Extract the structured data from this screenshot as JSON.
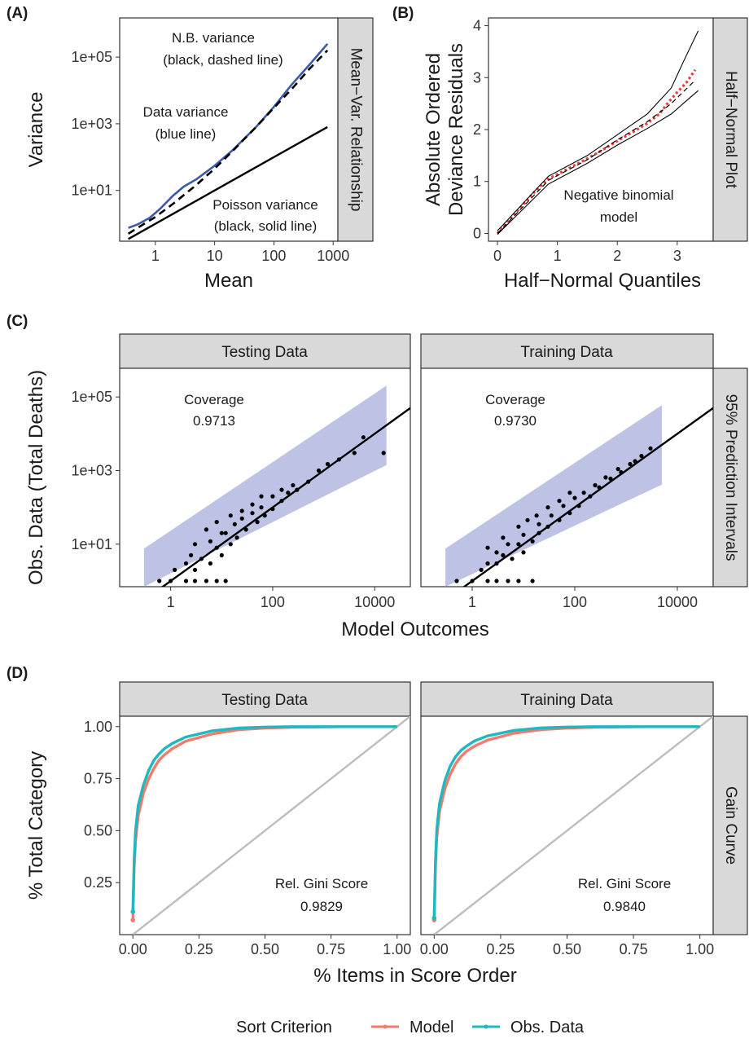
{
  "chart_data": [
    {
      "panel": "(A)",
      "type": "line",
      "xlabel": "Mean",
      "ylabel": "Variance",
      "strip": "Mean−Var. Relationship",
      "x_scale": "log10",
      "y_scale": "log10",
      "xlim": [
        0.25,
        1200
      ],
      "ylim": [
        0.3,
        1500000
      ],
      "x_ticks": [
        {
          "value": 1,
          "label": "1"
        },
        {
          "value": 10,
          "label": "10"
        },
        {
          "value": 100,
          "label": "100"
        },
        {
          "value": 1000,
          "label": "1000"
        }
      ],
      "y_ticks": [
        {
          "value": 10,
          "label": "1e+01"
        },
        {
          "value": 1000,
          "label": "1e+03"
        },
        {
          "value": 100000,
          "label": "1e+05"
        }
      ],
      "annotations": [
        {
          "lines": [
            "N.B. variance",
            "(black, dashed line)"
          ]
        },
        {
          "lines": [
            "Data variance",
            "(blue line)"
          ]
        },
        {
          "lines": [
            "Poisson variance",
            "(black, solid line)"
          ]
        }
      ],
      "series": [
        {
          "style": "data",
          "color": "#3b5ba7",
          "x": [
            0.35,
            0.5,
            0.8,
            1.2,
            2,
            3,
            5,
            10,
            20,
            50,
            100,
            200,
            400,
            800
          ],
          "y": [
            0.75,
            0.95,
            1.5,
            2.8,
            7,
            13,
            22,
            55,
            160,
            800,
            3200,
            15000,
            60000,
            250000
          ]
        },
        {
          "style": "nb",
          "color": "#000000",
          "x": [
            0.35,
            0.5,
            1,
            2,
            5,
            10,
            20,
            50,
            100,
            200,
            400,
            800
          ],
          "y": [
            0.5,
            0.75,
            1.6,
            4,
            15,
            45,
            150,
            800,
            3000,
            11000,
            45000,
            160000
          ]
        },
        {
          "style": "poisson",
          "color": "#000000",
          "x": [
            0.35,
            800
          ],
          "y": [
            0.35,
            800
          ]
        }
      ]
    },
    {
      "panel": "(B)",
      "type": "line",
      "xlabel": "Half−Normal Quantiles",
      "ylabel": [
        "Absolute Ordered",
        "Deviance Residuals"
      ],
      "strip": "Half−Normal Plot",
      "xlim": [
        -0.15,
        3.6
      ],
      "ylim": [
        -0.15,
        4.15
      ],
      "x_ticks": [
        0,
        1,
        2,
        3
      ],
      "y_ticks": [
        0,
        1,
        2,
        3,
        4
      ],
      "annotations": [
        {
          "lines": [
            "Negative binomial",
            "model"
          ]
        }
      ],
      "points_color": "#e8413a",
      "series": [
        {
          "style": "observed",
          "x": [
            0,
            0.2,
            0.4,
            0.6,
            0.85,
            1.1,
            1.4,
            1.7,
            2,
            2.3,
            2.5,
            2.7,
            2.85,
            3,
            3.15,
            3.3
          ],
          "y": [
            0,
            0.26,
            0.52,
            0.78,
            1.05,
            1.2,
            1.38,
            1.57,
            1.78,
            1.98,
            2.12,
            2.3,
            2.52,
            2.72,
            2.9,
            3.15
          ]
        },
        {
          "style": "envelope-mid",
          "x": [
            0,
            0.85,
            1.5,
            2,
            2.5,
            2.9,
            3.3
          ],
          "y": [
            0,
            1.02,
            1.42,
            1.8,
            2.15,
            2.5,
            2.95
          ]
        },
        {
          "style": "envelope-upper",
          "x": [
            0,
            0.85,
            1.5,
            2,
            2.5,
            2.9,
            3.1,
            3.35
          ],
          "y": [
            0.05,
            1.1,
            1.5,
            1.9,
            2.3,
            2.8,
            3.3,
            3.9
          ]
        },
        {
          "style": "envelope-lower",
          "x": [
            0,
            0.85,
            1.5,
            2,
            2.5,
            2.9,
            3.1,
            3.35
          ],
          "y": [
            -0.02,
            0.95,
            1.35,
            1.7,
            2.02,
            2.3,
            2.5,
            2.75
          ]
        }
      ]
    },
    {
      "panel": "(C)",
      "type": "scatter",
      "xlabel": "Model Outcomes",
      "ylabel": "Obs. Data (Total Deaths)",
      "strip": "95% Prediction Intervals",
      "x_scale": "log10",
      "y_scale": "log10",
      "xlim": [
        0.1,
        50000
      ],
      "ylim": [
        0.7,
        600000
      ],
      "x_ticks": [
        {
          "value": 1,
          "label": "1"
        },
        {
          "value": 100,
          "label": "100"
        },
        {
          "value": 10000,
          "label": "10000"
        }
      ],
      "y_ticks": [
        {
          "value": 10,
          "label": "1e+01"
        },
        {
          "value": 1000,
          "label": "1e+03"
        },
        {
          "value": 100000,
          "label": "1e+05"
        }
      ],
      "band_color": "#b3b9e0",
      "facets": [
        {
          "name": "Testing Data",
          "coverage_label": "Coverage",
          "coverage": "0.9713",
          "x_range": [
            0.3,
            17000
          ],
          "points": [
            [
              0.6,
              1
            ],
            [
              1,
              1
            ],
            [
              2,
              1
            ],
            [
              3,
              1
            ],
            [
              5,
              1
            ],
            [
              8,
              1
            ],
            [
              12,
              1
            ],
            [
              1.2,
              2
            ],
            [
              2,
              3
            ],
            [
              3,
              2
            ],
            [
              4,
              4
            ],
            [
              6,
              3
            ],
            [
              8,
              8
            ],
            [
              10,
              5
            ],
            [
              15,
              10
            ],
            [
              20,
              15
            ],
            [
              30,
              25
            ],
            [
              50,
              40
            ],
            [
              70,
              60
            ],
            [
              100,
              90
            ],
            [
              150,
              150
            ],
            [
              200,
              250
            ],
            [
              300,
              300
            ],
            [
              500,
              500
            ],
            [
              800,
              1000
            ],
            [
              1200,
              1500
            ],
            [
              2000,
              2000
            ],
            [
              4000,
              3000
            ],
            [
              6000,
              8000
            ],
            [
              15000,
              3000
            ],
            [
              3,
              10
            ],
            [
              5,
              25
            ],
            [
              8,
              40
            ],
            [
              10,
              20
            ],
            [
              15,
              60
            ],
            [
              25,
              80
            ],
            [
              40,
              120
            ],
            [
              60,
              200
            ],
            [
              2.5,
              5
            ],
            [
              6,
              12
            ],
            [
              12,
              20
            ],
            [
              18,
              35
            ],
            [
              25,
              50
            ],
            [
              40,
              70
            ],
            [
              60,
              100
            ],
            [
              100,
              200
            ],
            [
              150,
              300
            ],
            [
              250,
              400
            ]
          ]
        },
        {
          "name": "Training Data",
          "coverage_label": "Coverage",
          "coverage": "0.9730",
          "x_range": [
            0.3,
            5000
          ],
          "points": [
            [
              0.5,
              1
            ],
            [
              1,
              1
            ],
            [
              2,
              1
            ],
            [
              3,
              1
            ],
            [
              5,
              1
            ],
            [
              8,
              1
            ],
            [
              15,
              1
            ],
            [
              1.5,
              2
            ],
            [
              2,
              3
            ],
            [
              3,
              3
            ],
            [
              4,
              5
            ],
            [
              6,
              4
            ],
            [
              8,
              10
            ],
            [
              10,
              6
            ],
            [
              15,
              12
            ],
            [
              20,
              20
            ],
            [
              30,
              30
            ],
            [
              50,
              45
            ],
            [
              80,
              70
            ],
            [
              120,
              110
            ],
            [
              200,
              200
            ],
            [
              300,
              350
            ],
            [
              500,
              600
            ],
            [
              800,
              900
            ],
            [
              1200,
              1500
            ],
            [
              2000,
              2500
            ],
            [
              3000,
              4000
            ],
            [
              2,
              8
            ],
            [
              4,
              15
            ],
            [
              8,
              30
            ],
            [
              12,
              45
            ],
            [
              18,
              60
            ],
            [
              30,
              100
            ],
            [
              50,
              150
            ],
            [
              80,
              250
            ],
            [
              3,
              6
            ],
            [
              5,
              10
            ],
            [
              10,
              18
            ],
            [
              20,
              35
            ],
            [
              35,
              60
            ],
            [
              60,
              110
            ],
            [
              100,
              180
            ],
            [
              150,
              250
            ],
            [
              250,
              400
            ],
            [
              400,
              650
            ],
            [
              700,
              1100
            ],
            [
              1500,
              1800
            ]
          ]
        }
      ]
    },
    {
      "panel": "(D)",
      "type": "line",
      "xlabel": "% Items in Score Order",
      "ylabel": "% Total Category",
      "strip": "Gain Curve",
      "xlim": [
        -0.05,
        1.05
      ],
      "ylim": [
        0.0,
        1.05
      ],
      "x_ticks": [
        {
          "value": 0,
          "label": "0.00"
        },
        {
          "value": 0.25,
          "label": "0.25"
        },
        {
          "value": 0.5,
          "label": "0.50"
        },
        {
          "value": 0.75,
          "label": "0.75"
        },
        {
          "value": 1,
          "label": "1.00"
        }
      ],
      "y_ticks": [
        {
          "value": 0.25,
          "label": "0.25"
        },
        {
          "value": 0.5,
          "label": "0.50"
        },
        {
          "value": 0.75,
          "label": "0.75"
        },
        {
          "value": 1,
          "label": "1.00"
        }
      ],
      "legend": {
        "title": "Sort Criterion",
        "position": "bottom",
        "entries": [
          {
            "name": "Model",
            "color": "#f07c6d"
          },
          {
            "name": "Obs. Data",
            "color": "#1fb8bf"
          }
        ]
      },
      "facets": [
        {
          "name": "Testing Data",
          "gini_label": "Rel. Gini Score",
          "gini": "0.9829",
          "series": [
            {
              "name": "Model",
              "x": [
                0,
                0.005,
                0.01,
                0.02,
                0.04,
                0.06,
                0.08,
                0.1,
                0.12,
                0.15,
                0.2,
                0.3,
                0.4,
                0.5,
                0.6,
                0.8,
                1.0
              ],
              "y": [
                0.07,
                0.32,
                0.45,
                0.57,
                0.68,
                0.75,
                0.8,
                0.84,
                0.865,
                0.895,
                0.93,
                0.965,
                0.985,
                0.993,
                0.997,
                1.0,
                1.0
              ]
            },
            {
              "name": "Obs. Data",
              "x": [
                0,
                0.005,
                0.01,
                0.02,
                0.04,
                0.06,
                0.08,
                0.1,
                0.12,
                0.15,
                0.2,
                0.3,
                0.4,
                0.5,
                0.6,
                0.8,
                1.0
              ],
              "y": [
                0.11,
                0.36,
                0.5,
                0.62,
                0.72,
                0.79,
                0.84,
                0.87,
                0.895,
                0.92,
                0.95,
                0.98,
                0.993,
                0.998,
                1.0,
                1.0,
                1.0
              ]
            }
          ]
        },
        {
          "name": "Training Data",
          "gini_label": "Rel. Gini Score",
          "gini": "0.9840",
          "series": [
            {
              "name": "Model",
              "x": [
                0,
                0.005,
                0.01,
                0.02,
                0.04,
                0.06,
                0.08,
                0.1,
                0.12,
                0.15,
                0.2,
                0.3,
                0.4,
                0.5,
                0.6,
                0.8,
                1.0
              ],
              "y": [
                0.07,
                0.34,
                0.47,
                0.59,
                0.7,
                0.77,
                0.82,
                0.855,
                0.88,
                0.905,
                0.935,
                0.968,
                0.985,
                0.993,
                0.997,
                1.0,
                1.0
              ]
            },
            {
              "name": "Obs. Data",
              "x": [
                0,
                0.005,
                0.01,
                0.02,
                0.04,
                0.06,
                0.08,
                0.1,
                0.12,
                0.15,
                0.2,
                0.3,
                0.4,
                0.5,
                0.6,
                0.8,
                1.0
              ],
              "y": [
                0.08,
                0.37,
                0.51,
                0.63,
                0.74,
                0.81,
                0.855,
                0.885,
                0.905,
                0.93,
                0.955,
                0.982,
                0.994,
                0.998,
                1.0,
                1.0,
                1.0
              ]
            }
          ]
        }
      ]
    }
  ]
}
